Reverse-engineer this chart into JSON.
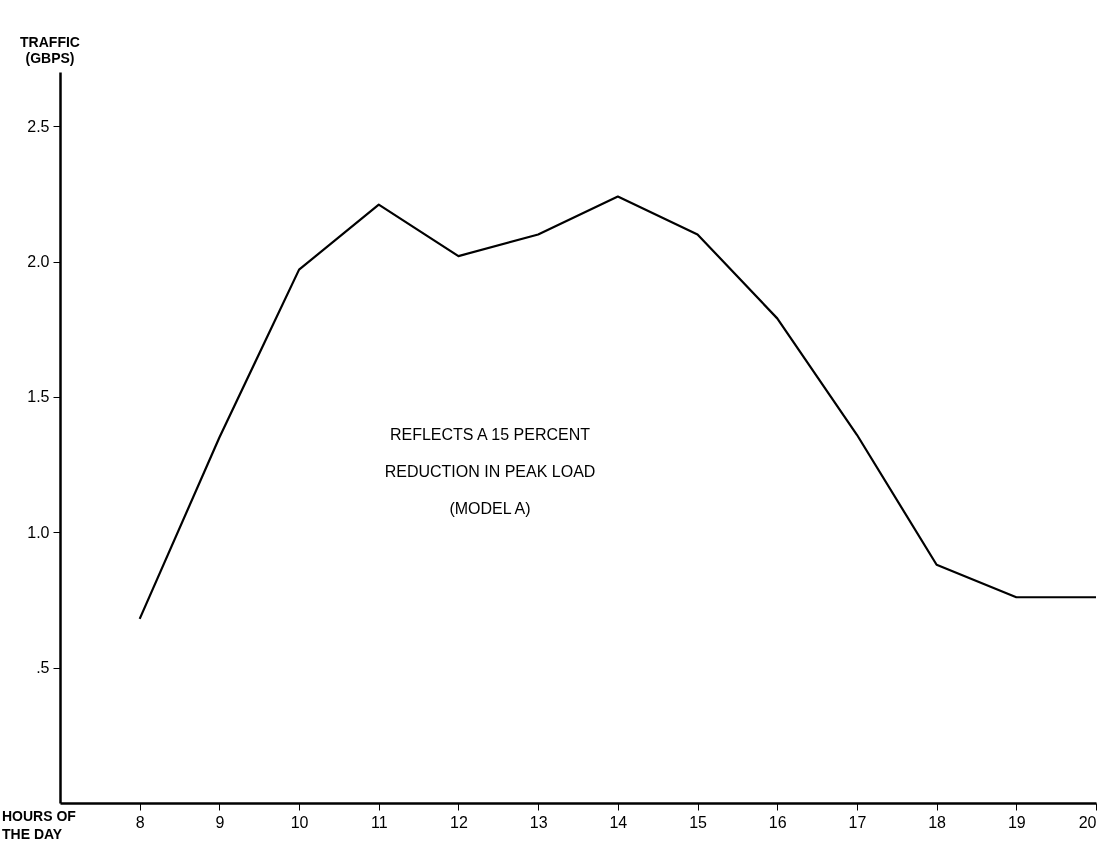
{
  "chart_data": {
    "type": "line",
    "ylabel": "TRAFFIC\n(GBPS)",
    "xlabel": "HOURS OF\nTHE DAY",
    "annotations": [
      "REFLECTS A 15 PERCENT\nREDUCTION IN PEAK LOAD\n(MODEL A)"
    ],
    "x": [
      8,
      9,
      10,
      11,
      12,
      13,
      14,
      15,
      16,
      17,
      18,
      19,
      20
    ],
    "series": [
      {
        "color": "#000000",
        "values": [
          0.68,
          1.35,
          1.97,
          2.21,
          2.02,
          2.1,
          2.24,
          2.1,
          1.79,
          1.36,
          0.88,
          0.76,
          0.76
        ]
      }
    ],
    "xlim": [
      7,
      20
    ],
    "xticks": [
      8,
      9,
      10,
      11,
      12,
      13,
      14,
      15,
      16,
      17,
      18,
      19,
      20
    ],
    "ylim": [
      0,
      2.7
    ],
    "yticks": [
      {
        "value": 0.5,
        "label": ".5"
      },
      {
        "value": 1,
        "label": "1.0"
      },
      {
        "value": 1.5,
        "label": "1.5"
      },
      {
        "value": 2,
        "label": "2.0"
      },
      {
        "value": 2.5,
        "label": "2.5"
      }
    ],
    "grid": false,
    "marker": "none",
    "line_style": "solid"
  }
}
